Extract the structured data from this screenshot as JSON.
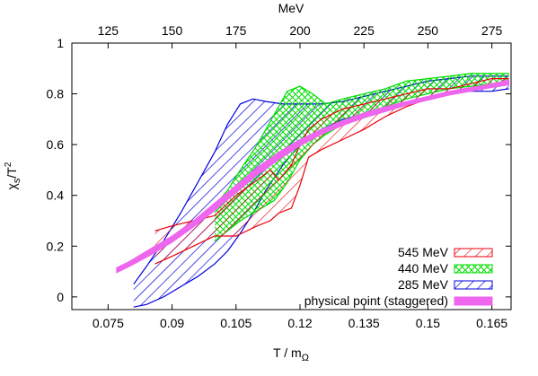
{
  "chart_data": {
    "type": "area",
    "xlabel": "T / m",
    "xlabel_sub": "Ω",
    "ylabel": "χ",
    "ylabel_sub": "s",
    "ylabel_suffix": "/T",
    "ylabel_sup": "2",
    "top_axis_label": "MeV",
    "xlim": [
      0.0665,
      0.1695
    ],
    "ylim": [
      -0.05,
      1.0
    ],
    "x_ticks": [
      0.075,
      0.09,
      0.105,
      0.12,
      0.135,
      0.15,
      0.165
    ],
    "x_tick_labels": [
      "0.075",
      "0.09",
      "0.105",
      "0.12",
      "0.135",
      "0.15",
      "0.165"
    ],
    "y_ticks": [
      0,
      0.2,
      0.4,
      0.6,
      0.8,
      1.0
    ],
    "y_tick_labels": [
      "0",
      "0.2",
      "0.4",
      "0.6",
      "0.8",
      "1"
    ],
    "top_ticks_mev": [
      125,
      150,
      175,
      200,
      225,
      250,
      275
    ],
    "top_tick_labels": [
      "125",
      "150",
      "175",
      "200",
      "225",
      "250",
      "275"
    ],
    "mev_per_unit": 1666.67,
    "grid": false,
    "legend_position": "bottom-right",
    "series": [
      {
        "name": "545 MeV",
        "color": "#e8000b",
        "hatch": "diagonal",
        "x": [
          0.086,
          0.09,
          0.095,
          0.1,
          0.105,
          0.11,
          0.113,
          0.115,
          0.118,
          0.12,
          0.122,
          0.125,
          0.13,
          0.135,
          0.14,
          0.145,
          0.15,
          0.155,
          0.16,
          0.165,
          0.169
        ],
        "upper": [
          0.26,
          0.28,
          0.3,
          0.32,
          0.4,
          0.46,
          0.5,
          0.46,
          0.52,
          0.6,
          0.66,
          0.7,
          0.74,
          0.76,
          0.78,
          0.8,
          0.82,
          0.82,
          0.84,
          0.86,
          0.86
        ],
        "lower": [
          0.13,
          0.16,
          0.2,
          0.24,
          0.24,
          0.28,
          0.3,
          0.33,
          0.35,
          0.44,
          0.55,
          0.58,
          0.62,
          0.66,
          0.71,
          0.75,
          0.78,
          0.8,
          0.82,
          0.83,
          0.84
        ]
      },
      {
        "name": "440 MeV",
        "color": "#00dd00",
        "hatch": "crosshatch",
        "x": [
          0.1,
          0.103,
          0.106,
          0.11,
          0.114,
          0.117,
          0.12,
          0.123,
          0.126,
          0.13,
          0.135,
          0.14,
          0.145,
          0.15,
          0.155,
          0.16,
          0.165,
          0.169
        ],
        "upper": [
          0.36,
          0.42,
          0.5,
          0.6,
          0.72,
          0.81,
          0.83,
          0.8,
          0.76,
          0.78,
          0.8,
          0.82,
          0.85,
          0.86,
          0.87,
          0.88,
          0.88,
          0.88
        ],
        "lower": [
          0.22,
          0.26,
          0.3,
          0.34,
          0.38,
          0.45,
          0.54,
          0.6,
          0.64,
          0.68,
          0.72,
          0.75,
          0.78,
          0.8,
          0.82,
          0.83,
          0.84,
          0.85
        ]
      },
      {
        "name": "285 MeV",
        "color": "#0000dd",
        "hatch": "diagonal",
        "x": [
          0.081,
          0.084,
          0.088,
          0.092,
          0.096,
          0.1,
          0.103,
          0.106,
          0.109,
          0.112,
          0.116,
          0.12,
          0.125,
          0.13,
          0.135,
          0.14,
          0.145,
          0.15,
          0.155,
          0.16,
          0.165,
          0.169
        ],
        "upper": [
          0.05,
          0.12,
          0.22,
          0.33,
          0.45,
          0.57,
          0.68,
          0.76,
          0.78,
          0.77,
          0.76,
          0.76,
          0.76,
          0.77,
          0.79,
          0.81,
          0.83,
          0.85,
          0.86,
          0.87,
          0.87,
          0.87
        ],
        "lower": [
          -0.04,
          -0.03,
          0.0,
          0.04,
          0.08,
          0.13,
          0.18,
          0.25,
          0.33,
          0.42,
          0.52,
          0.6,
          0.66,
          0.7,
          0.72,
          0.74,
          0.76,
          0.78,
          0.8,
          0.81,
          0.81,
          0.82
        ]
      },
      {
        "name": "physical point (staggered)",
        "color": "#ee66ee",
        "hatch": "solid",
        "x": [
          0.077,
          0.08,
          0.085,
          0.09,
          0.095,
          0.1,
          0.105,
          0.11,
          0.115,
          0.12,
          0.125,
          0.13,
          0.135,
          0.14,
          0.145,
          0.15,
          0.155,
          0.16,
          0.165,
          0.169
        ],
        "upper": [
          0.115,
          0.14,
          0.19,
          0.24,
          0.3,
          0.37,
          0.44,
          0.51,
          0.57,
          0.62,
          0.66,
          0.695,
          0.725,
          0.75,
          0.77,
          0.79,
          0.81,
          0.825,
          0.84,
          0.855
        ],
        "lower": [
          0.095,
          0.12,
          0.165,
          0.215,
          0.275,
          0.34,
          0.41,
          0.48,
          0.54,
          0.595,
          0.64,
          0.675,
          0.705,
          0.73,
          0.755,
          0.775,
          0.795,
          0.81,
          0.825,
          0.835
        ]
      }
    ]
  }
}
